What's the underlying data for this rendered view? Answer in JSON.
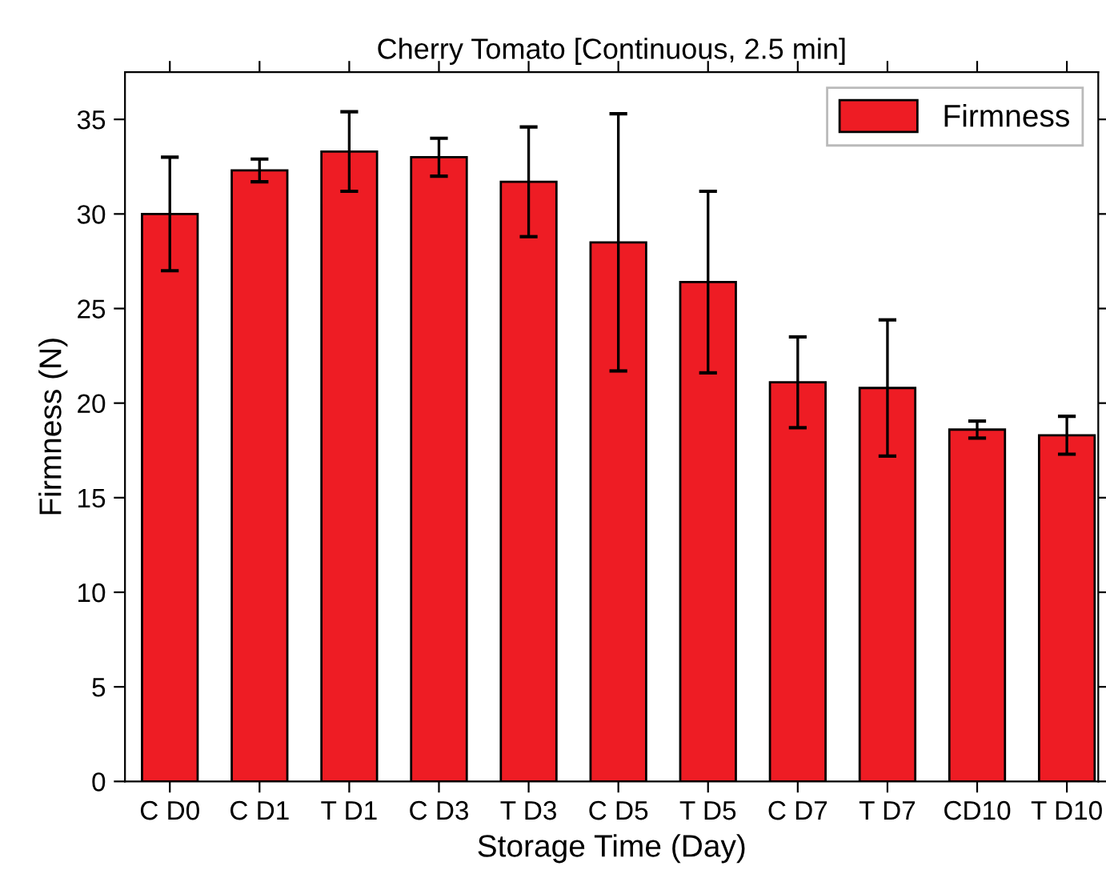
{
  "chart_data": {
    "type": "bar",
    "title": "Cherry Tomato [Continuous, 2.5 min]",
    "xlabel": "Storage Time (Day)",
    "ylabel": "Firmness (N)",
    "categories": [
      "C D0",
      "C D1",
      "T D1",
      "C D3",
      "T D3",
      "C D5",
      "T D5",
      "C D7",
      "T D7",
      "CD10",
      "T D10"
    ],
    "series": [
      {
        "name": "Firmness",
        "color": "#ee1c24",
        "values": [
          30.0,
          32.3,
          33.3,
          33.0,
          31.7,
          28.5,
          26.4,
          21.1,
          20.8,
          18.6,
          18.3
        ],
        "errors": [
          3.0,
          0.6,
          2.1,
          1.0,
          2.9,
          6.8,
          4.8,
          2.4,
          3.6,
          0.45,
          1.0
        ]
      }
    ],
    "ylim": [
      0,
      37.5
    ],
    "yticks": [
      0,
      5,
      10,
      15,
      20,
      25,
      30,
      35
    ],
    "grid": false,
    "legend": "top right"
  }
}
